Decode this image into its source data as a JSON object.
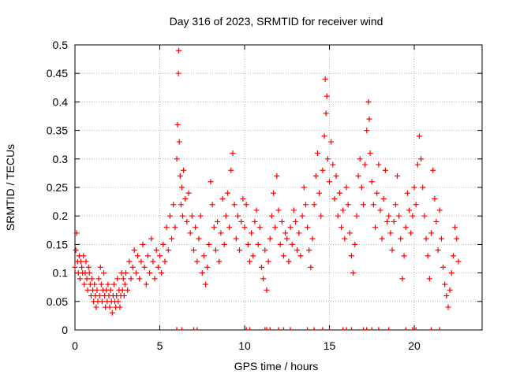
{
  "chart_data": {
    "type": "scatter",
    "title": "Day 316 of 2023, SRMTID for receiver wind",
    "xlabel": "GPS time / hours",
    "ylabel": "SRMTID / TECUs",
    "xlim": [
      0,
      24
    ],
    "ylim": [
      0,
      0.5
    ],
    "xticks": [
      0,
      5,
      10,
      15,
      20
    ],
    "yticks": [
      0,
      0.05,
      0.1,
      0.15,
      0.2,
      0.25,
      0.3,
      0.35,
      0.4,
      0.45,
      0.5
    ],
    "grid": true,
    "marker": "plus",
    "series_color": "#ff0000",
    "series": [
      {
        "name": "SRMTID",
        "points": [
          [
            0.0,
            0.11
          ],
          [
            0.05,
            0.14
          ],
          [
            0.1,
            0.17
          ],
          [
            0.15,
            0.12
          ],
          [
            0.2,
            0.1
          ],
          [
            0.25,
            0.13
          ],
          [
            0.3,
            0.09
          ],
          [
            0.35,
            0.12
          ],
          [
            0.4,
            0.11
          ],
          [
            0.45,
            0.1
          ],
          [
            0.5,
            0.13
          ],
          [
            0.55,
            0.08
          ],
          [
            0.6,
            0.1
          ],
          [
            0.65,
            0.12
          ],
          [
            0.7,
            0.09
          ],
          [
            0.75,
            0.07
          ],
          [
            0.8,
            0.11
          ],
          [
            0.85,
            0.1
          ],
          [
            0.9,
            0.08
          ],
          [
            0.95,
            0.06
          ],
          [
            1.0,
            0.09
          ],
          [
            1.05,
            0.07
          ],
          [
            1.1,
            0.05
          ],
          [
            1.15,
            0.08
          ],
          [
            1.2,
            0.06
          ],
          [
            1.25,
            0.04
          ],
          [
            1.3,
            0.07
          ],
          [
            1.35,
            0.05
          ],
          [
            1.4,
            0.09
          ],
          [
            1.45,
            0.06
          ],
          [
            1.5,
            0.11
          ],
          [
            1.55,
            0.08
          ],
          [
            1.6,
            0.05
          ],
          [
            1.65,
            0.07
          ],
          [
            1.7,
            0.1
          ],
          [
            1.75,
            0.06
          ],
          [
            1.8,
            0.04
          ],
          [
            1.85,
            0.07
          ],
          [
            1.9,
            0.05
          ],
          [
            1.95,
            0.08
          ],
          [
            2.0,
            0.06
          ],
          [
            2.05,
            0.04
          ],
          [
            2.1,
            0.07
          ],
          [
            2.15,
            0.05
          ],
          [
            2.2,
            0.03
          ],
          [
            2.25,
            0.06
          ],
          [
            2.3,
            0.08
          ],
          [
            2.35,
            0.05
          ],
          [
            2.4,
            0.04
          ],
          [
            2.45,
            0.06
          ],
          [
            2.5,
            0.09
          ],
          [
            2.55,
            0.05
          ],
          [
            2.6,
            0.07
          ],
          [
            2.65,
            0.04
          ],
          [
            2.7,
            0.06
          ],
          [
            2.75,
            0.1
          ],
          [
            2.8,
            0.07
          ],
          [
            2.85,
            0.09
          ],
          [
            2.9,
            0.06
          ],
          [
            2.95,
            0.08
          ],
          [
            3.0,
            0.1
          ],
          [
            3.1,
            0.07
          ],
          [
            3.2,
            0.12
          ],
          [
            3.3,
            0.09
          ],
          [
            3.4,
            0.11
          ],
          [
            3.5,
            0.14
          ],
          [
            3.6,
            0.1
          ],
          [
            3.7,
            0.13
          ],
          [
            3.8,
            0.09
          ],
          [
            3.9,
            0.12
          ],
          [
            4.0,
            0.15
          ],
          [
            4.1,
            0.11
          ],
          [
            4.2,
            0.08
          ],
          [
            4.3,
            0.13
          ],
          [
            4.4,
            0.1
          ],
          [
            4.5,
            0.16
          ],
          [
            4.6,
            0.12
          ],
          [
            4.7,
            0.09
          ],
          [
            4.8,
            0.14
          ],
          [
            4.9,
            0.11
          ],
          [
            5.0,
            0.13
          ],
          [
            5.1,
            0.1
          ],
          [
            5.2,
            0.15
          ],
          [
            5.3,
            0.12
          ],
          [
            5.4,
            0.18
          ],
          [
            5.5,
            0.14
          ],
          [
            5.6,
            0.2
          ],
          [
            5.7,
            0.16
          ],
          [
            5.8,
            0.22
          ],
          [
            5.9,
            0.18
          ],
          [
            6.0,
            0.3
          ],
          [
            6.05,
            0.36
          ],
          [
            6.1,
            0.45
          ],
          [
            6.12,
            0.49
          ],
          [
            6.15,
            0.33
          ],
          [
            6.2,
            0.27
          ],
          [
            6.25,
            0.22
          ],
          [
            6.3,
            0.25
          ],
          [
            6.35,
            0.2
          ],
          [
            6.4,
            0.28
          ],
          [
            6.5,
            0.23
          ],
          [
            6.6,
            0.19
          ],
          [
            6.7,
            0.24
          ],
          [
            6.8,
            0.17
          ],
          [
            6.9,
            0.2
          ],
          [
            7.0,
            0.14
          ],
          [
            7.1,
            0.18
          ],
          [
            7.2,
            0.12
          ],
          [
            7.3,
            0.16
          ],
          [
            7.4,
            0.2
          ],
          [
            7.5,
            0.1
          ],
          [
            7.6,
            0.13
          ],
          [
            7.7,
            0.08
          ],
          [
            7.8,
            0.11
          ],
          [
            7.9,
            0.15
          ],
          [
            8.0,
            0.26
          ],
          [
            8.1,
            0.22
          ],
          [
            8.2,
            0.18
          ],
          [
            8.3,
            0.14
          ],
          [
            8.4,
            0.19
          ],
          [
            8.5,
            0.12
          ],
          [
            8.6,
            0.17
          ],
          [
            8.7,
            0.23
          ],
          [
            8.8,
            0.15
          ],
          [
            8.9,
            0.2
          ],
          [
            9.0,
            0.24
          ],
          [
            9.1,
            0.18
          ],
          [
            9.2,
            0.28
          ],
          [
            9.3,
            0.31
          ],
          [
            9.4,
            0.22
          ],
          [
            9.5,
            0.16
          ],
          [
            9.6,
            0.2
          ],
          [
            9.7,
            0.14
          ],
          [
            9.8,
            0.19
          ],
          [
            9.9,
            0.23
          ],
          [
            10.0,
            0.18
          ],
          [
            10.1,
            0.22
          ],
          [
            10.2,
            0.15
          ],
          [
            10.3,
            0.12
          ],
          [
            10.4,
            0.17
          ],
          [
            10.5,
            0.13
          ],
          [
            10.6,
            0.19
          ],
          [
            10.7,
            0.21
          ],
          [
            10.8,
            0.15
          ],
          [
            10.9,
            0.18
          ],
          [
            11.0,
            0.11
          ],
          [
            11.1,
            0.09
          ],
          [
            11.2,
            0.14
          ],
          [
            11.3,
            0.07
          ],
          [
            11.4,
            0.12
          ],
          [
            11.5,
            0.16
          ],
          [
            11.6,
            0.2
          ],
          [
            11.7,
            0.24
          ],
          [
            11.8,
            0.18
          ],
          [
            11.9,
            0.27
          ],
          [
            12.0,
            0.21
          ],
          [
            12.1,
            0.15
          ],
          [
            12.2,
            0.19
          ],
          [
            12.3,
            0.13
          ],
          [
            12.4,
            0.17
          ],
          [
            12.5,
            0.16
          ],
          [
            12.6,
            0.12
          ],
          [
            12.7,
            0.18
          ],
          [
            12.8,
            0.15
          ],
          [
            12.9,
            0.21
          ],
          [
            13.0,
            0.19
          ],
          [
            13.1,
            0.14
          ],
          [
            13.2,
            0.17
          ],
          [
            13.3,
            0.13
          ],
          [
            13.4,
            0.2
          ],
          [
            13.5,
            0.25
          ],
          [
            13.6,
            0.22
          ],
          [
            13.7,
            0.18
          ],
          [
            13.8,
            0.14
          ],
          [
            13.9,
            0.11
          ],
          [
            14.0,
            0.16
          ],
          [
            14.1,
            0.22
          ],
          [
            14.2,
            0.27
          ],
          [
            14.3,
            0.31
          ],
          [
            14.4,
            0.24
          ],
          [
            14.5,
            0.2
          ],
          [
            14.6,
            0.28
          ],
          [
            14.7,
            0.34
          ],
          [
            14.75,
            0.44
          ],
          [
            14.8,
            0.38
          ],
          [
            14.85,
            0.41
          ],
          [
            14.9,
            0.3
          ],
          [
            15.0,
            0.26
          ],
          [
            15.1,
            0.33
          ],
          [
            15.2,
            0.29
          ],
          [
            15.3,
            0.23
          ],
          [
            15.4,
            0.27
          ],
          [
            15.5,
            0.2
          ],
          [
            15.6,
            0.24
          ],
          [
            15.7,
            0.18
          ],
          [
            15.8,
            0.21
          ],
          [
            15.9,
            0.16
          ],
          [
            16.0,
            0.25
          ],
          [
            16.1,
            0.22
          ],
          [
            16.2,
            0.17
          ],
          [
            16.3,
            0.13
          ],
          [
            16.4,
            0.1
          ],
          [
            16.5,
            0.15
          ],
          [
            16.6,
            0.2
          ],
          [
            16.7,
            0.27
          ],
          [
            16.8,
            0.3
          ],
          [
            16.9,
            0.25
          ],
          [
            17.0,
            0.22
          ],
          [
            17.1,
            0.29
          ],
          [
            17.2,
            0.35
          ],
          [
            17.3,
            0.4
          ],
          [
            17.35,
            0.37
          ],
          [
            17.4,
            0.31
          ],
          [
            17.5,
            0.26
          ],
          [
            17.6,
            0.22
          ],
          [
            17.7,
            0.18
          ],
          [
            17.8,
            0.24
          ],
          [
            17.9,
            0.29
          ],
          [
            18.0,
            0.21
          ],
          [
            18.1,
            0.16
          ],
          [
            18.2,
            0.23
          ],
          [
            18.3,
            0.28
          ],
          [
            18.4,
            0.19
          ],
          [
            18.5,
            0.2
          ],
          [
            18.6,
            0.17
          ],
          [
            18.7,
            0.14
          ],
          [
            18.8,
            0.19
          ],
          [
            18.9,
            0.22
          ],
          [
            19.0,
            0.27
          ],
          [
            19.1,
            0.2
          ],
          [
            19.2,
            0.16
          ],
          [
            19.3,
            0.09
          ],
          [
            19.4,
            0.13
          ],
          [
            19.5,
            0.18
          ],
          [
            19.6,
            0.24
          ],
          [
            19.7,
            0.21
          ],
          [
            19.8,
            0.17
          ],
          [
            19.9,
            0.2
          ],
          [
            20.0,
            0.25
          ],
          [
            20.1,
            0.22
          ],
          [
            20.2,
            0.29
          ],
          [
            20.3,
            0.34
          ],
          [
            20.4,
            0.3
          ],
          [
            20.5,
            0.25
          ],
          [
            20.6,
            0.2
          ],
          [
            20.7,
            0.16
          ],
          [
            20.8,
            0.13
          ],
          [
            20.9,
            0.09
          ],
          [
            21.0,
            0.17
          ],
          [
            21.1,
            0.28
          ],
          [
            21.2,
            0.23
          ],
          [
            21.3,
            0.19
          ],
          [
            21.4,
            0.14
          ],
          [
            21.5,
            0.21
          ],
          [
            21.6,
            0.16
          ],
          [
            21.7,
            0.11
          ],
          [
            21.8,
            0.08
          ],
          [
            21.9,
            0.06
          ],
          [
            22.0,
            0.04
          ],
          [
            22.1,
            0.07
          ],
          [
            22.2,
            0.1
          ],
          [
            22.3,
            0.13
          ],
          [
            22.4,
            0.18
          ],
          [
            22.5,
            0.16
          ],
          [
            22.6,
            0.12
          ]
        ]
      }
    ],
    "zero_markers": [
      6.0,
      6.3,
      7.0,
      7.2,
      10.1,
      10.3,
      11.2,
      11.3,
      11.5,
      12.0,
      12.3,
      12.7,
      13.7,
      14.1,
      14.6,
      15.0,
      15.8,
      16.0,
      16.3,
      17.0,
      17.2,
      17.5,
      17.9,
      18.5,
      19.5,
      19.9,
      20.1,
      21.0,
      21.5
    ]
  }
}
